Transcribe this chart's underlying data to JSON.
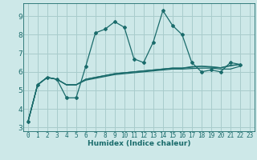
{
  "xlabel": "Humidex (Indice chaleur)",
  "background_color": "#cde8e8",
  "grid_color": "#a8cccc",
  "line_color": "#1a6b6b",
  "xlim": [
    -0.5,
    23.5
  ],
  "ylim": [
    2.8,
    9.7
  ],
  "yticks": [
    3,
    4,
    5,
    6,
    7,
    8,
    9
  ],
  "xticks": [
    0,
    1,
    2,
    3,
    4,
    5,
    6,
    7,
    8,
    9,
    10,
    11,
    12,
    13,
    14,
    15,
    16,
    17,
    18,
    19,
    20,
    21,
    22,
    23
  ],
  "series": [
    [
      3.3,
      5.3,
      5.7,
      5.6,
      4.6,
      4.6,
      6.3,
      8.1,
      8.3,
      8.7,
      8.4,
      6.7,
      6.5,
      7.6,
      9.3,
      8.5,
      8.0,
      6.5,
      6.0,
      6.1,
      6.0,
      6.5,
      6.4
    ],
    [
      3.3,
      5.3,
      5.7,
      5.6,
      5.3,
      5.3,
      5.55,
      5.65,
      5.75,
      5.85,
      5.9,
      5.95,
      6.0,
      6.05,
      6.1,
      6.15,
      6.15,
      6.18,
      6.2,
      6.2,
      6.15,
      6.15,
      6.3
    ],
    [
      3.3,
      5.3,
      5.7,
      5.6,
      5.3,
      5.3,
      5.6,
      5.7,
      5.8,
      5.9,
      5.95,
      6.0,
      6.05,
      6.1,
      6.15,
      6.2,
      6.2,
      6.25,
      6.3,
      6.28,
      6.22,
      6.35,
      6.4
    ],
    [
      3.3,
      5.3,
      5.7,
      5.6,
      5.3,
      5.3,
      5.6,
      5.7,
      5.8,
      5.9,
      5.95,
      6.0,
      6.05,
      6.1,
      6.15,
      6.2,
      6.2,
      6.28,
      6.3,
      6.25,
      6.22,
      6.32,
      6.4
    ]
  ],
  "marker_series": [
    0
  ],
  "marker": "D",
  "marker_size": 2,
  "linewidth": 0.9,
  "tick_fontsize": 5.5,
  "xlabel_fontsize": 6.5
}
